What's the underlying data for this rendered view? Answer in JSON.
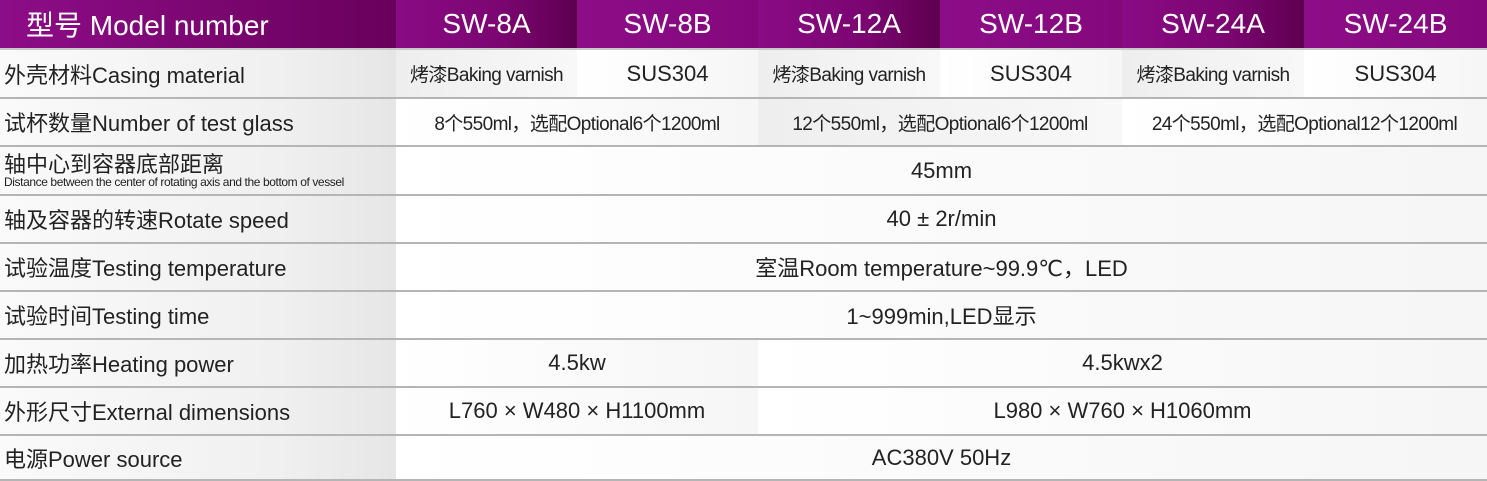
{
  "header": {
    "label": "型号 Model number",
    "models": [
      "SW-8A",
      "SW-8B",
      "SW-12A",
      "SW-12B",
      "SW-24A",
      "SW-24B"
    ]
  },
  "rows": {
    "casing": {
      "label": "外壳材料Casing material",
      "values": [
        "烤漆Baking varnish",
        "SUS304",
        "烤漆Baking varnish",
        "SUS304",
        "烤漆Baking varnish",
        "SUS304"
      ]
    },
    "glass": {
      "label": "试杯数量Number of test glass",
      "values": [
        "8个550ml，选配Optional6个1200ml",
        "12个550ml，选配Optional6个1200ml",
        "24个550ml，选配Optional12个1200ml"
      ]
    },
    "distance": {
      "label": "轴中心到容器底部距离",
      "sublabel": "Distance between the center of rotating axis and the bottom of vessel",
      "value": "45mm"
    },
    "speed": {
      "label": "轴及容器的转速Rotate speed",
      "value": "40 ± 2r/min"
    },
    "temperature": {
      "label": "试验温度Testing temperature",
      "value": "室温Room temperature~99.9℃，LED"
    },
    "time": {
      "label": "试验时间Testing time",
      "value": "1~999min,LED显示"
    },
    "power": {
      "label": "加热功率Heating power",
      "values": [
        "4.5kw",
        "4.5kwx2"
      ]
    },
    "dimensions": {
      "label": "外形尺寸External dimensions",
      "values": [
        "L760 × W480 × H1100mm",
        "L980 × W760 × H1060mm"
      ]
    },
    "source": {
      "label": "电源Power source",
      "value": "AC380V 50Hz"
    }
  },
  "colors": {
    "header": "#7a0570",
    "header_text": "#ffffff",
    "text": "#222222",
    "divider": "#b5b5b5"
  }
}
